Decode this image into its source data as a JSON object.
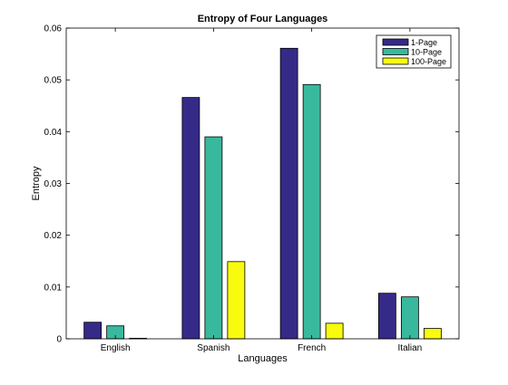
{
  "chart_data": {
    "type": "bar",
    "title": "Entropy of Four Languages",
    "xlabel": "Languages",
    "ylabel": "Entropy",
    "categories": [
      "English",
      "Spanish",
      "French",
      "Italian"
    ],
    "series": [
      {
        "name": "1-Page",
        "color": "#352a87",
        "values": [
          0.0032,
          0.0466,
          0.0561,
          0.0088
        ]
      },
      {
        "name": "10-Page",
        "color": "#38b99e",
        "values": [
          0.0025,
          0.039,
          0.0491,
          0.0081
        ]
      },
      {
        "name": "100-Page",
        "color": "#f9fb0e",
        "values": [
          0.0001,
          0.0149,
          0.003,
          0.002
        ]
      }
    ],
    "ylim": [
      0,
      0.06
    ],
    "yticks": [
      0,
      0.01,
      0.02,
      0.03,
      0.04,
      0.05,
      0.06
    ],
    "ytick_labels": [
      "0",
      "0.01",
      "0.02",
      "0.03",
      "0.04",
      "0.05",
      "0.06"
    ],
    "grid": false,
    "legend_position": "top-right"
  }
}
